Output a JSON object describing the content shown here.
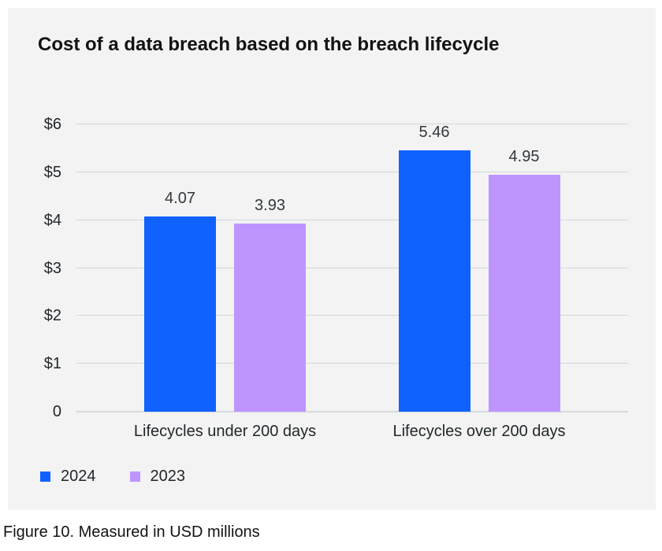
{
  "header": {
    "title": "Cost of a data breach based on the breach lifecycle"
  },
  "caption": "Figure 10. Measured in USD millions",
  "colors": {
    "series_2024": "#0f62fe",
    "series_2023": "#be95ff",
    "card_background": "#f3f3f3",
    "gridline": "#d2d7db"
  },
  "chart_data": {
    "type": "bar",
    "title": "Cost of a data breach based on the breach lifecycle",
    "unit": "USD millions",
    "categories": [
      "Lifecycles under 200 days",
      "Lifecycles over 200 days"
    ],
    "series": [
      {
        "name": "2024",
        "color": "#0f62fe",
        "values": [
          4.07,
          5.46
        ]
      },
      {
        "name": "2023",
        "color": "#be95ff",
        "values": [
          3.93,
          4.95
        ]
      }
    ],
    "y_ticks": [
      {
        "value": 6,
        "label": "$6"
      },
      {
        "value": 5,
        "label": "$5"
      },
      {
        "value": 4,
        "label": "$4"
      },
      {
        "value": 3,
        "label": "$3"
      },
      {
        "value": 2,
        "label": "$2"
      },
      {
        "value": 1,
        "label": "$1"
      },
      {
        "value": 0,
        "label": "0"
      }
    ],
    "ylim": [
      0,
      6
    ],
    "grid": true,
    "legend_position": "bottom-left"
  }
}
